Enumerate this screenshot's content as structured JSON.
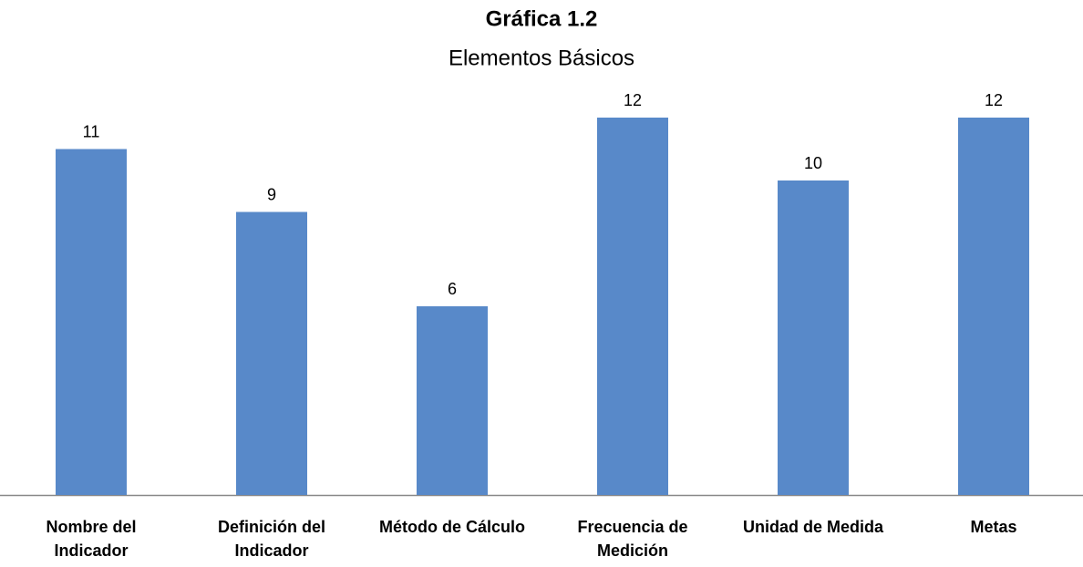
{
  "chart_data": {
    "type": "bar",
    "title": "Gráfica 1.2",
    "subtitle": "Elementos Básicos",
    "categories": [
      "Nombre del Indicador",
      "Definición del Indicador",
      "Método de Cálculo",
      "Frecuencia de Medición",
      "Unidad de Medida",
      "Metas"
    ],
    "values": [
      11,
      9,
      6,
      12,
      10,
      12
    ],
    "color": "#5889c9",
    "ylim": [
      0,
      14
    ]
  }
}
